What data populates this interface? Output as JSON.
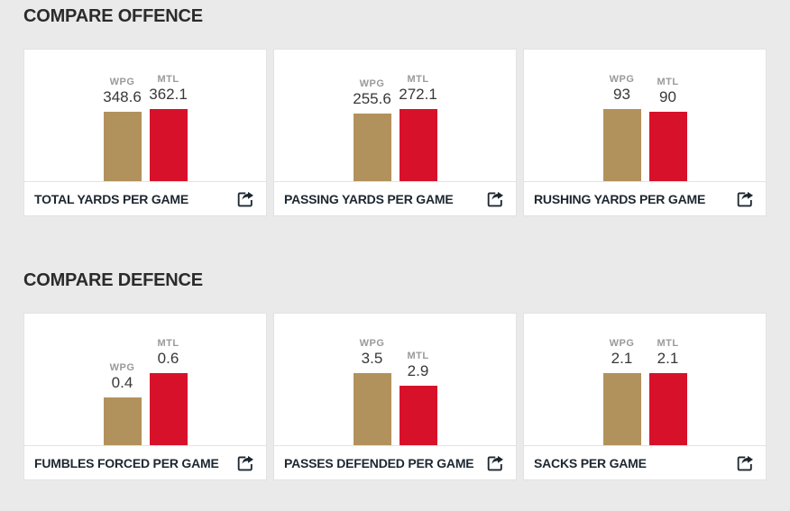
{
  "colors": {
    "background": "#eaeaea",
    "card": "#ffffff",
    "wpg_bar": "#b2925c",
    "mtl_bar": "#d8112b"
  },
  "teams": {
    "wpg": "WPG",
    "mtl": "MTL"
  },
  "sections": [
    {
      "title": "COMPARE OFFENCE",
      "cards": [
        {
          "label": "TOTAL YARDS PER GAME",
          "wpg": "348.6",
          "mtl": "362.1"
        },
        {
          "label": "PASSING YARDS PER GAME",
          "wpg": "255.6",
          "mtl": "272.1"
        },
        {
          "label": "RUSHING YARDS PER GAME",
          "wpg": "93",
          "mtl": "90"
        }
      ]
    },
    {
      "title": "COMPARE DEFENCE",
      "cards": [
        {
          "label": "FUMBLES FORCED PER GAME",
          "wpg": "0.4",
          "mtl": "0.6"
        },
        {
          "label": "PASSES DEFENDED PER GAME",
          "wpg": "3.5",
          "mtl": "2.9"
        },
        {
          "label": "SACKS PER GAME",
          "wpg": "2.1",
          "mtl": "2.1"
        }
      ]
    }
  ],
  "icons": {
    "share": "share-export-arrow"
  },
  "chart_data": [
    {
      "type": "bar",
      "title": "TOTAL YARDS PER GAME",
      "categories": [
        "WPG",
        "MTL"
      ],
      "values": [
        348.6,
        362.1
      ],
      "colors": [
        "#b2925c",
        "#d8112b"
      ],
      "legend_position": "none",
      "grid": false
    },
    {
      "type": "bar",
      "title": "PASSING YARDS PER GAME",
      "categories": [
        "WPG",
        "MTL"
      ],
      "values": [
        255.6,
        272.1
      ],
      "colors": [
        "#b2925c",
        "#d8112b"
      ],
      "legend_position": "none",
      "grid": false
    },
    {
      "type": "bar",
      "title": "RUSHING YARDS PER GAME",
      "categories": [
        "WPG",
        "MTL"
      ],
      "values": [
        93,
        90
      ],
      "colors": [
        "#b2925c",
        "#d8112b"
      ],
      "legend_position": "none",
      "grid": false
    },
    {
      "type": "bar",
      "title": "FUMBLES FORCED PER GAME",
      "categories": [
        "WPG",
        "MTL"
      ],
      "values": [
        0.4,
        0.6
      ],
      "colors": [
        "#b2925c",
        "#d8112b"
      ],
      "legend_position": "none",
      "grid": false
    },
    {
      "type": "bar",
      "title": "PASSES DEFENDED PER GAME",
      "categories": [
        "WPG",
        "MTL"
      ],
      "values": [
        3.5,
        2.9
      ],
      "colors": [
        "#b2925c",
        "#d8112b"
      ],
      "legend_position": "none",
      "grid": false
    },
    {
      "type": "bar",
      "title": "SACKS PER GAME",
      "categories": [
        "WPG",
        "MTL"
      ],
      "values": [
        2.1,
        2.1
      ],
      "colors": [
        "#b2925c",
        "#d8112b"
      ],
      "legend_position": "none",
      "grid": false
    }
  ]
}
